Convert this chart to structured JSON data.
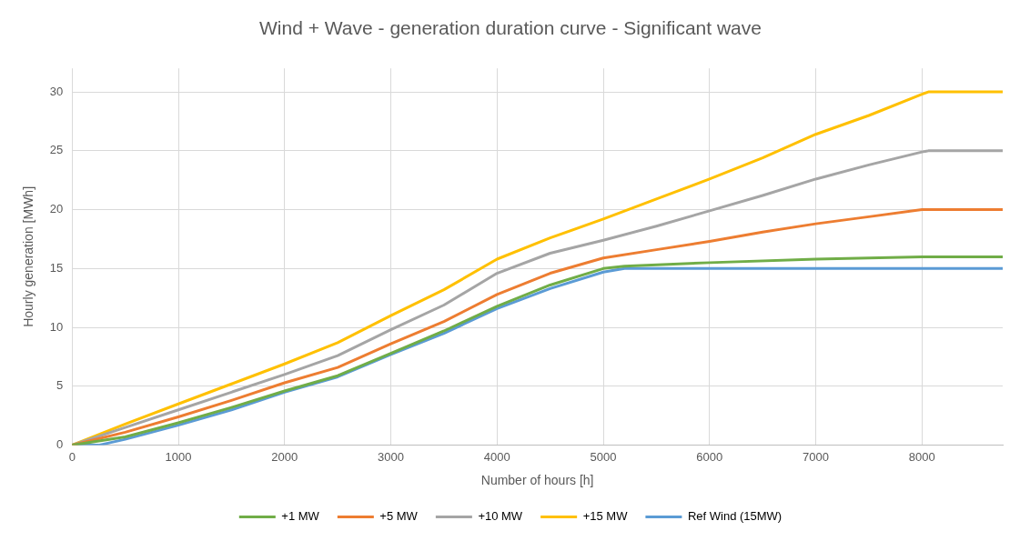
{
  "chart_data": {
    "type": "line",
    "title": "Wind + Wave - generation duration curve - Significant wave",
    "xlabel": "Number of hours [h]",
    "ylabel": "Hourly generation [MWh]",
    "xlim": [
      0,
      8760
    ],
    "xticks": [
      0,
      1000,
      2000,
      3000,
      4000,
      5000,
      6000,
      7000,
      8000
    ],
    "ylim": [
      0,
      32
    ],
    "yticks": [
      0,
      5,
      10,
      15,
      20,
      25,
      30
    ],
    "grid": true,
    "legend": "bottom",
    "marker": "none",
    "line_style": "solid",
    "series": [
      {
        "name": "+1 MW",
        "color": "#70ad47",
        "x": [
          0,
          500,
          1000,
          1500,
          2000,
          2500,
          3000,
          3500,
          4000,
          4500,
          5000,
          5200,
          6000,
          7000,
          8000,
          8760
        ],
        "values": [
          0,
          0.7,
          1.9,
          3.2,
          4.6,
          5.9,
          7.8,
          9.7,
          11.8,
          13.6,
          15,
          15.2,
          15.5,
          15.8,
          16,
          16
        ]
      },
      {
        "name": "+5 MW",
        "color": "#ed7d31",
        "x": [
          0,
          500,
          1000,
          1500,
          2000,
          2500,
          3000,
          3500,
          4000,
          4500,
          5000,
          5500,
          6000,
          6500,
          7000,
          7500,
          8000,
          8760
        ],
        "values": [
          0,
          1.1,
          2.4,
          3.8,
          5.3,
          6.6,
          8.6,
          10.5,
          12.8,
          14.6,
          15.9,
          16.6,
          17.3,
          18.1,
          18.8,
          19.4,
          20,
          20
        ]
      },
      {
        "name": "+10 MW",
        "color": "#a5a5a5",
        "x": [
          0,
          500,
          1000,
          1500,
          2000,
          2500,
          3000,
          3500,
          4000,
          4500,
          5000,
          5500,
          6000,
          6500,
          7000,
          7500,
          8000,
          8060,
          8760
        ],
        "values": [
          0,
          1.5,
          3,
          4.5,
          6,
          7.6,
          9.8,
          11.9,
          14.6,
          16.3,
          17.4,
          18.6,
          19.9,
          21.2,
          22.6,
          23.8,
          24.9,
          25,
          25
        ]
      },
      {
        "name": "+15 MW",
        "color": "#ffc000",
        "x": [
          0,
          500,
          1000,
          1500,
          2000,
          2500,
          3000,
          3500,
          4000,
          4500,
          5000,
          5500,
          6000,
          6500,
          7000,
          7500,
          8000,
          8060,
          8760
        ],
        "values": [
          0,
          1.8,
          3.5,
          5.2,
          6.9,
          8.7,
          11,
          13.2,
          15.8,
          17.6,
          19.2,
          20.9,
          22.6,
          24.4,
          26.4,
          28,
          29.8,
          30,
          30
        ]
      },
      {
        "name": "Ref Wind (15MW)",
        "color": "#5b9bd5",
        "x": [
          0,
          250,
          500,
          1000,
          1500,
          2000,
          2500,
          3000,
          3500,
          4000,
          4500,
          5000,
          5200,
          8760
        ],
        "values": [
          0,
          0,
          0.5,
          1.7,
          3,
          4.5,
          5.8,
          7.7,
          9.5,
          11.6,
          13.3,
          14.7,
          15,
          15
        ]
      }
    ]
  }
}
